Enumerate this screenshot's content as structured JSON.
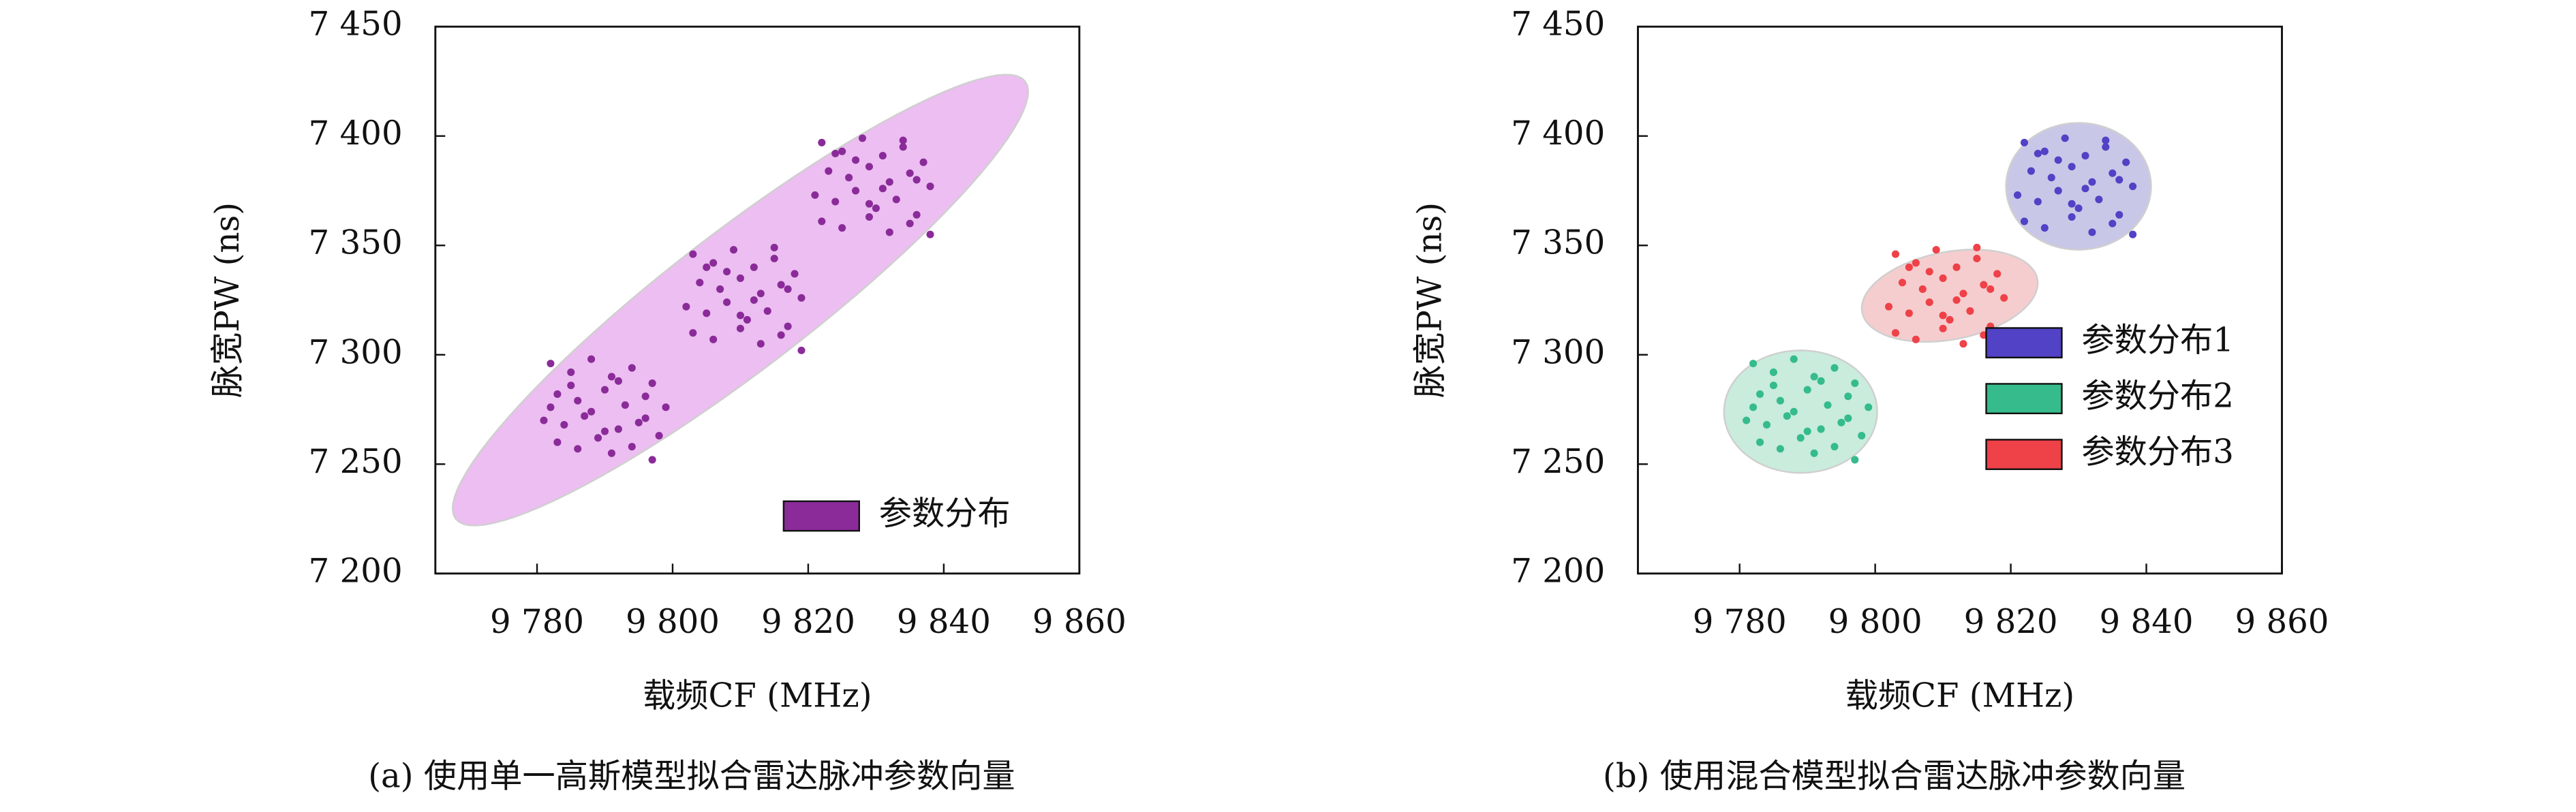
{
  "chart_data": [
    {
      "type": "scatter",
      "xlabel": "载频CF (MHz)",
      "ylabel": "脉宽PW (ns)",
      "caption": "(a) 使用单一高斯模型拟合雷达脉冲参数向量",
      "xlim": [
        9765,
        9860
      ],
      "ylim": [
        7200,
        7450
      ],
      "xticks": [
        {
          "value": 9780,
          "label": "9 780"
        },
        {
          "value": 9800,
          "label": "9 800"
        },
        {
          "value": 9820,
          "label": "9 820"
        },
        {
          "value": 9840,
          "label": "9 840"
        },
        {
          "value": 9860,
          "label": "9 860"
        }
      ],
      "yticks": [
        {
          "value": 7200,
          "label": "7 200"
        },
        {
          "value": 7250,
          "label": "7 250"
        },
        {
          "value": 7300,
          "label": "7 300"
        },
        {
          "value": 7350,
          "label": "7 350"
        },
        {
          "value": 7400,
          "label": "7 400"
        },
        {
          "value": 7450,
          "label": "7 450"
        }
      ],
      "legend": "lower right",
      "series": [
        {
          "name": "参数分布",
          "color": "#8a2b99",
          "ellipse_color": "#e9b3ef",
          "ellipse": {
            "center": [
              9810,
              7325
            ],
            "axis1": [
              42,
              100
            ],
            "axis2": [
              6.2,
              -25
            ]
          },
          "x": [
            9782,
            9785,
            9788,
            9791,
            9794,
            9797,
            9783,
            9786,
            9790,
            9793,
            9796,
            9799,
            9781,
            9784,
            9787,
            9792,
            9795,
            9798,
            9783,
            9786,
            9789,
            9791,
            9794,
            9797,
            9785,
            9788,
            9792,
            9796,
            9782,
            9790,
            9803,
            9806,
            9809,
            9812,
            9815,
            9818,
            9804,
            9807,
            9810,
            9813,
            9816,
            9819,
            9802,
            9805,
            9808,
            9811,
            9814,
            9817,
            9803,
            9806,
            9810,
            9813,
            9816,
            9819,
            9808,
            9812,
            9815,
            9805,
            9810,
            9817,
            9822,
            9825,
            9828,
            9831,
            9834,
            9837,
            9823,
            9826,
            9829,
            9832,
            9835,
            9838,
            9821,
            9824,
            9827,
            9830,
            9833,
            9836,
            9822,
            9825,
            9829,
            9832,
            9835,
            9838,
            9827,
            9831,
            9834,
            9824,
            9829,
            9836
          ],
          "y": [
            7296,
            7292,
            7298,
            7290,
            7294,
            7287,
            7282,
            7279,
            7284,
            7277,
            7281,
            7276,
            7270,
            7268,
            7272,
            7266,
            7269,
            7263,
            7260,
            7257,
            7262,
            7255,
            7258,
            7252,
            7286,
            7274,
            7288,
            7271,
            7276,
            7265,
            7346,
            7342,
            7348,
            7340,
            7344,
            7337,
            7333,
            7330,
            7335,
            7328,
            7332,
            7326,
            7322,
            7319,
            7324,
            7316,
            7320,
            7313,
            7310,
            7307,
            7312,
            7305,
            7309,
            7302,
            7338,
            7325,
            7349,
            7340,
            7318,
            7330,
            7397,
            7393,
            7399,
            7391,
            7395,
            7388,
            7384,
            7381,
            7386,
            7379,
            7383,
            7377,
            7373,
            7370,
            7375,
            7367,
            7371,
            7364,
            7361,
            7358,
            7363,
            7356,
            7360,
            7355,
            7389,
            7376,
            7398,
            7392,
            7369,
            7380
          ]
        }
      ]
    },
    {
      "type": "scatter",
      "xlabel": "载频CF (MHz)",
      "ylabel": "脉宽PW (ns)",
      "caption": "(b) 使用混合模型拟合雷达脉冲参数向量",
      "xlim": [
        9765,
        9860
      ],
      "ylim": [
        7200,
        7450
      ],
      "xticks": [
        {
          "value": 9780,
          "label": "9 780"
        },
        {
          "value": 9800,
          "label": "9 800"
        },
        {
          "value": 9820,
          "label": "9 820"
        },
        {
          "value": 9840,
          "label": "9 840"
        },
        {
          "value": 9860,
          "label": "9 860"
        }
      ],
      "yticks": [
        {
          "value": 7200,
          "label": "7 200"
        },
        {
          "value": 7250,
          "label": "7 250"
        },
        {
          "value": 7300,
          "label": "7 300"
        },
        {
          "value": 7350,
          "label": "7 350"
        },
        {
          "value": 7400,
          "label": "7 400"
        },
        {
          "value": 7450,
          "label": "7 450"
        }
      ],
      "legend": "center right",
      "series": [
        {
          "name": "参数分布1",
          "color": "#5142c6",
          "ellipse_color": "#c0bde3",
          "ellipse": {
            "center": [
              9830,
              7377
            ],
            "axis1": [
              10.7,
              0
            ],
            "axis2": [
              0,
              29
            ]
          },
          "x": [
            9822,
            9825,
            9828,
            9831,
            9834,
            9837,
            9823,
            9826,
            9829,
            9832,
            9835,
            9838,
            9821,
            9824,
            9827,
            9830,
            9833,
            9836,
            9822,
            9825,
            9829,
            9832,
            9835,
            9838,
            9827,
            9831,
            9834,
            9824,
            9829,
            9836
          ],
          "y": [
            7397,
            7393,
            7399,
            7391,
            7395,
            7388,
            7384,
            7381,
            7386,
            7379,
            7383,
            7377,
            7373,
            7370,
            7375,
            7367,
            7371,
            7364,
            7361,
            7358,
            7363,
            7356,
            7360,
            7355,
            7389,
            7376,
            7398,
            7392,
            7369,
            7380
          ]
        },
        {
          "name": "参数分布2",
          "color": "#35bb8c",
          "ellipse_color": "#bfe9d6",
          "ellipse": {
            "center": [
              9789,
              7274
            ],
            "axis1": [
              11.3,
              0
            ],
            "axis2": [
              0,
              28
            ]
          },
          "x": [
            9782,
            9785,
            9788,
            9791,
            9794,
            9797,
            9783,
            9786,
            9790,
            9793,
            9796,
            9799,
            9781,
            9784,
            9787,
            9792,
            9795,
            9798,
            9783,
            9786,
            9789,
            9791,
            9794,
            9797,
            9785,
            9788,
            9792,
            9796,
            9782,
            9790
          ],
          "y": [
            7296,
            7292,
            7298,
            7290,
            7294,
            7287,
            7282,
            7279,
            7284,
            7277,
            7281,
            7276,
            7270,
            7268,
            7272,
            7266,
            7269,
            7263,
            7260,
            7257,
            7262,
            7255,
            7258,
            7252,
            7286,
            7274,
            7288,
            7271,
            7276,
            7265
          ]
        },
        {
          "name": "参数分布3",
          "color": "#ee4148",
          "ellipse_color": "#f3c4c6",
          "ellipse": {
            "center": [
              9811,
              7327
            ],
            "axis1": [
              12.5,
              11
            ],
            "axis2": [
              -3.5,
              18
            ]
          },
          "x": [
            9803,
            9806,
            9809,
            9812,
            9815,
            9818,
            9804,
            9807,
            9810,
            9813,
            9816,
            9819,
            9802,
            9805,
            9808,
            9811,
            9814,
            9817,
            9803,
            9806,
            9810,
            9813,
            9816,
            9819,
            9808,
            9812,
            9815,
            9805,
            9810,
            9817
          ],
          "y": [
            7346,
            7342,
            7348,
            7340,
            7344,
            7337,
            7333,
            7330,
            7335,
            7328,
            7332,
            7326,
            7322,
            7319,
            7324,
            7316,
            7320,
            7313,
            7310,
            7307,
            7312,
            7305,
            7309,
            7302,
            7338,
            7325,
            7349,
            7340,
            7318,
            7330
          ]
        }
      ]
    }
  ]
}
